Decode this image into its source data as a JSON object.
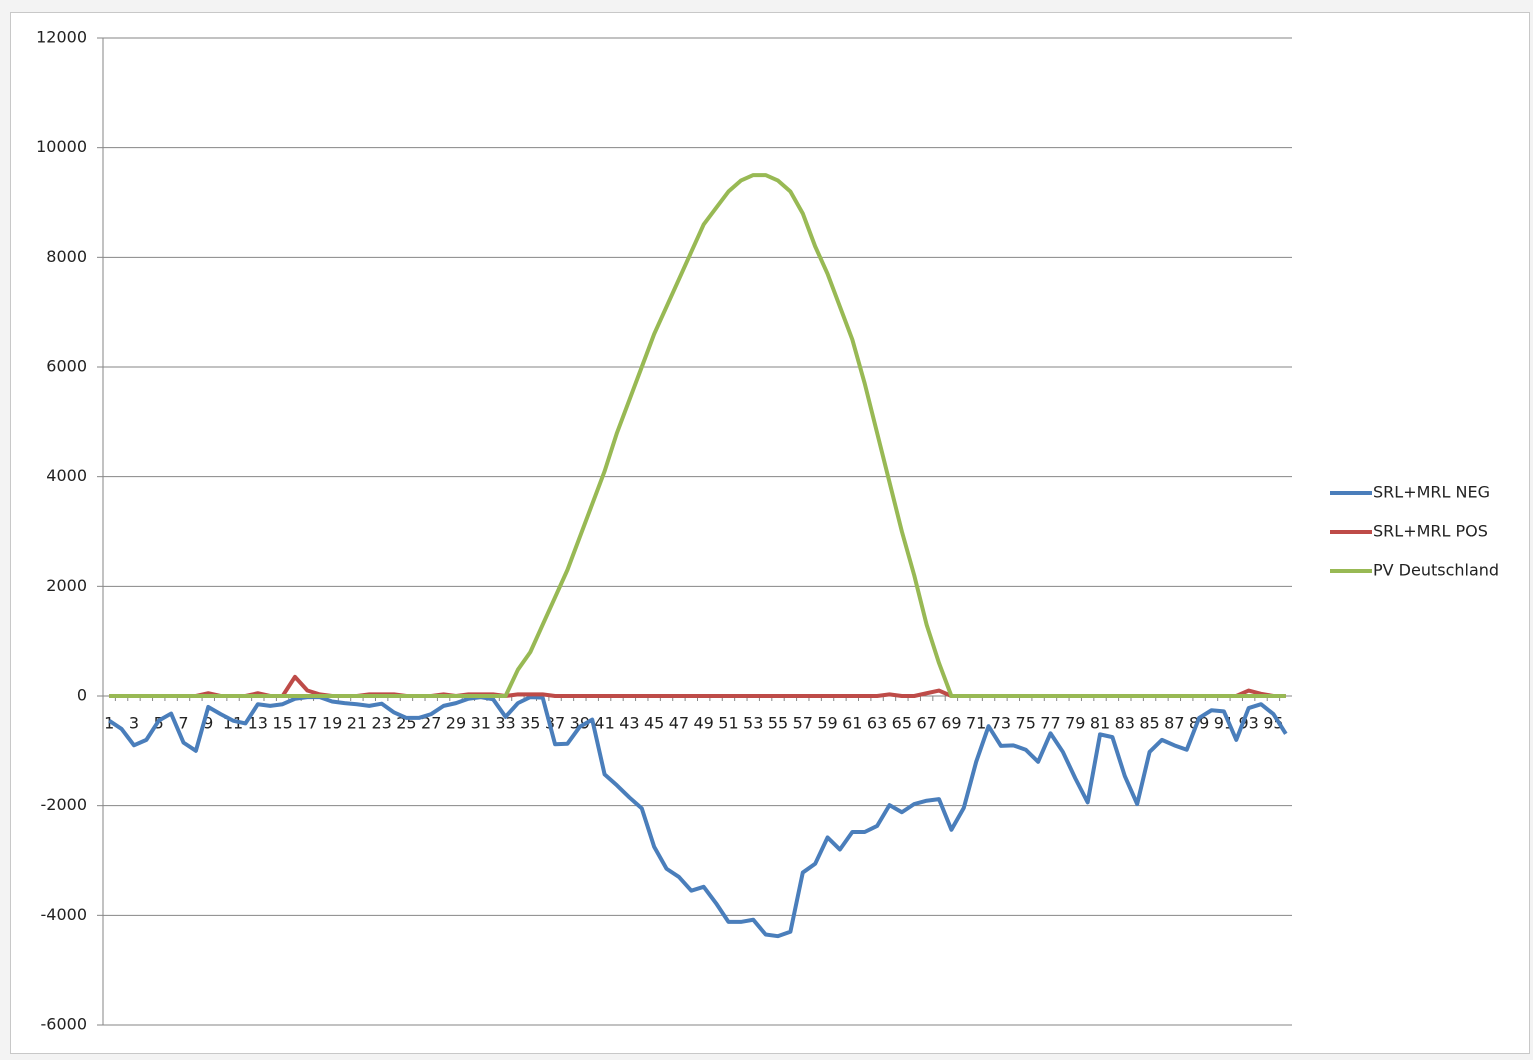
{
  "chart_data": {
    "type": "line",
    "categories": [
      "1",
      null,
      "3",
      null,
      "5",
      null,
      "7",
      null,
      "9",
      null,
      "11",
      null,
      "13",
      null,
      "15",
      null,
      "17",
      null,
      "19",
      null,
      "21",
      null,
      "23",
      null,
      "25",
      null,
      "27",
      null,
      "29",
      null,
      "31",
      null,
      "33",
      null,
      "35",
      null,
      "37",
      null,
      "39",
      null,
      "41",
      null,
      "43",
      null,
      "45",
      null,
      "47",
      null,
      "49",
      null,
      "51",
      null,
      "53",
      null,
      "55",
      null,
      "57",
      null,
      "59",
      null,
      "61",
      null,
      "63",
      null,
      "65",
      null,
      "67",
      null,
      "69",
      null,
      "71",
      null,
      "73",
      null,
      "75",
      null,
      "77",
      null,
      "79",
      null,
      "81",
      null,
      "83",
      null,
      "85",
      null,
      "87",
      null,
      "89",
      null,
      "91",
      null,
      "93",
      null,
      "95",
      null
    ],
    "series": [
      {
        "name": "SRL+MRL NEG",
        "color": "#4a7ebb",
        "values": [
          -450,
          -600,
          -900,
          -800,
          -450,
          -320,
          -850,
          -1000,
          -200,
          -330,
          -450,
          -500,
          -150,
          -180,
          -150,
          -50,
          -20,
          -20,
          -100,
          -130,
          -150,
          -180,
          -140,
          -300,
          -400,
          -400,
          -330,
          -180,
          -130,
          -50,
          -20,
          -60,
          -380,
          -130,
          -20,
          -30,
          -880,
          -870,
          -560,
          -430,
          -1430,
          -1630,
          -1850,
          -2050,
          -2750,
          -3150,
          -3300,
          -3550,
          -3480,
          -3780,
          -4120,
          -4120,
          -4080,
          -4350,
          -4380,
          -4300,
          -3220,
          -3060,
          -2580,
          -2800,
          -2480,
          -2480,
          -2370,
          -1990,
          -2120,
          -1970,
          -1910,
          -1880,
          -2440,
          -2040,
          -1200,
          -550,
          -910,
          -900,
          -980,
          -1200,
          -680,
          -1020,
          -1500,
          -1940,
          -700,
          -750,
          -1460,
          -1970,
          -1020,
          -800,
          -900,
          -980,
          -400,
          -260,
          -280,
          -800,
          -220,
          -150,
          -330,
          -690
        ]
      },
      {
        "name": "SRL+MRL POS",
        "color": "#be4b48",
        "values": [
          0,
          0,
          0,
          0,
          0,
          0,
          0,
          0,
          50,
          0,
          0,
          0,
          50,
          0,
          0,
          350,
          100,
          30,
          0,
          0,
          0,
          30,
          30,
          30,
          0,
          0,
          0,
          30,
          0,
          30,
          30,
          30,
          0,
          30,
          30,
          30,
          0,
          0,
          0,
          0,
          0,
          0,
          0,
          0,
          0,
          0,
          0,
          0,
          0,
          0,
          0,
          0,
          0,
          0,
          0,
          0,
          0,
          0,
          0,
          0,
          0,
          0,
          0,
          30,
          0,
          0,
          50,
          100,
          0,
          0,
          0,
          0,
          0,
          0,
          0,
          0,
          0,
          0,
          0,
          0,
          0,
          0,
          0,
          0,
          0,
          0,
          0,
          0,
          0,
          0,
          0,
          0,
          100,
          40,
          0,
          0
        ]
      },
      {
        "name": "PV Deutschland",
        "color": "#98b954",
        "values": [
          0,
          0,
          0,
          0,
          0,
          0,
          0,
          0,
          0,
          0,
          0,
          0,
          0,
          0,
          0,
          0,
          0,
          0,
          0,
          0,
          0,
          0,
          0,
          0,
          0,
          0,
          0,
          0,
          0,
          0,
          0,
          0,
          0,
          480,
          800,
          1300,
          1800,
          2300,
          2900,
          3500,
          4100,
          4800,
          5400,
          6000,
          6600,
          7100,
          7600,
          8100,
          8600,
          8900,
          9200,
          9400,
          9500,
          9500,
          9400,
          9200,
          8800,
          8200,
          7700,
          7100,
          6500,
          5700,
          4800,
          3900,
          3000,
          2200,
          1300,
          600,
          0,
          0,
          0,
          0,
          0,
          0,
          0,
          0,
          0,
          0,
          0,
          0,
          0,
          0,
          0,
          0,
          0,
          0,
          0,
          0,
          0,
          0,
          0,
          0,
          0,
          0,
          0,
          0
        ]
      }
    ],
    "ylim": [
      -6000,
      12000
    ],
    "yticks": [
      -6000,
      -4000,
      -2000,
      0,
      2000,
      4000,
      6000,
      8000,
      10000,
      12000
    ],
    "grid": true,
    "legend": "right"
  }
}
